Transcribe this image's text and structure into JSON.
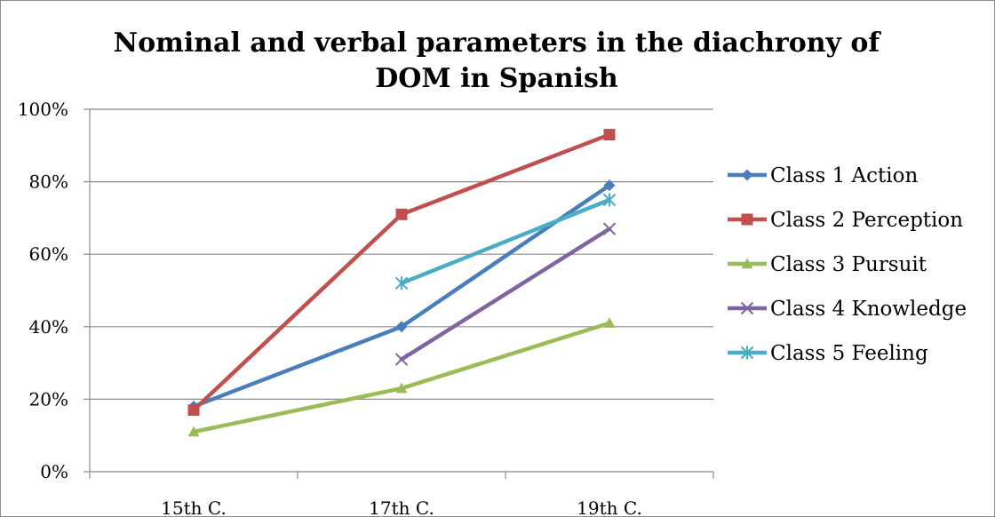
{
  "chart_data": {
    "type": "line",
    "title_lines": [
      "Nominal and verbal parameters in the diachrony of",
      "DOM in Spanish"
    ],
    "categories": [
      "15th C.",
      "17th C.",
      "19th C."
    ],
    "y_ticks": [
      "0%",
      "20%",
      "40%",
      "60%",
      "80%",
      "100%"
    ],
    "ylim": [
      0,
      100
    ],
    "grid": true,
    "legend_position": "right",
    "series": [
      {
        "name": "Class 1 Action",
        "values": [
          18,
          40,
          79
        ],
        "color": "#4a7ebb",
        "marker": "diamond"
      },
      {
        "name": "Class 2 Perception",
        "values": [
          17,
          71,
          93
        ],
        "color": "#c0504d",
        "marker": "square"
      },
      {
        "name": "Class 3 Pursuit",
        "values": [
          11,
          23,
          41
        ],
        "color": "#9bbb59",
        "marker": "triangle"
      },
      {
        "name": "Class 4 Knowledge",
        "values": [
          null,
          31,
          67
        ],
        "color": "#8064a2",
        "marker": "x"
      },
      {
        "name": "Class 5 Feeling",
        "values": [
          null,
          52,
          75
        ],
        "color": "#4bacc6",
        "marker": "star"
      }
    ]
  }
}
